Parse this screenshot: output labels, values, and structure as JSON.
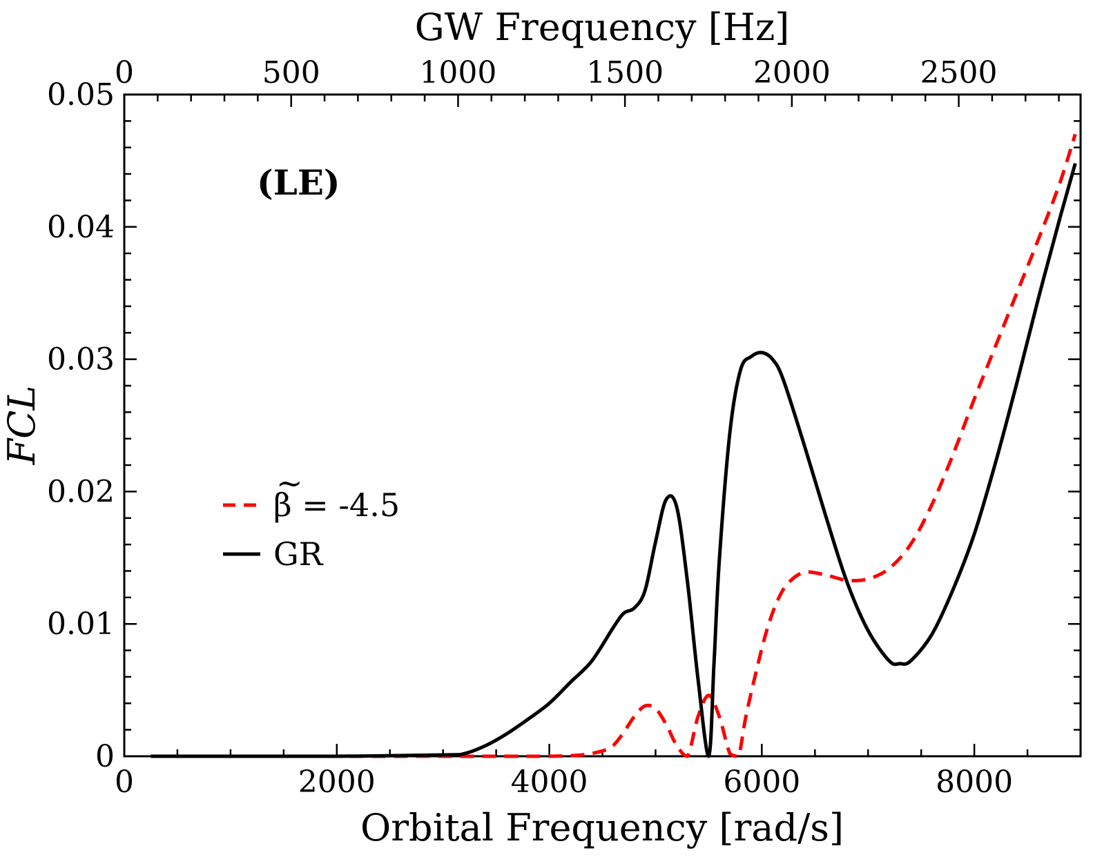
{
  "chart_data": {
    "type": "line",
    "title": "",
    "xlabel": "Orbital Frequency [rad/s]",
    "x2label": "GW Frequency [Hz]",
    "ylabel": "FCL",
    "annotation": "(LE)",
    "xlim": [
      0,
      9000
    ],
    "x2lim": [
      0,
      2865
    ],
    "ylim": [
      0,
      0.05
    ],
    "x_ticks": [
      {
        "value": 0,
        "label": "0"
      },
      {
        "value": 2000,
        "label": "2000"
      },
      {
        "value": 4000,
        "label": "4000"
      },
      {
        "value": 6000,
        "label": "6000"
      },
      {
        "value": 8000,
        "label": "8000"
      }
    ],
    "x2_ticks": [
      {
        "value": 0,
        "label": "0"
      },
      {
        "value": 500,
        "label": "500"
      },
      {
        "value": 1000,
        "label": "1000"
      },
      {
        "value": 1500,
        "label": "1500"
      },
      {
        "value": 2000,
        "label": "2000"
      },
      {
        "value": 2500,
        "label": "2500"
      }
    ],
    "y_ticks": [
      {
        "value": 0,
        "label": "0"
      },
      {
        "value": 0.01,
        "label": "0.01"
      },
      {
        "value": 0.02,
        "label": "0.02"
      },
      {
        "value": 0.03,
        "label": "0.03"
      },
      {
        "value": 0.04,
        "label": "0.04"
      },
      {
        "value": 0.05,
        "label": "0.05"
      }
    ],
    "legend": {
      "placement": "center-left",
      "entries": [
        {
          "series": 0,
          "label_prefix": "β",
          "label_accent": "~",
          "label_suffix": " = -4.5"
        },
        {
          "series": 1,
          "label": "GR"
        }
      ]
    },
    "series": [
      {
        "name": "β̃ = -4.5",
        "color": "#ff0000",
        "style": "dashed",
        "x": [
          250,
          1000,
          2000,
          3000,
          3500,
          4000,
          4300,
          4500,
          4600,
          4700,
          4800,
          4900,
          5000,
          5100,
          5200,
          5300,
          5400,
          5500,
          5600,
          5700,
          5780,
          5850,
          5950,
          6050,
          6150,
          6250,
          6400,
          6600,
          6800,
          7000,
          7200,
          7400,
          7600,
          7800,
          8000,
          8200,
          8400,
          8600,
          8800,
          8950
        ],
        "y": [
          0,
          0,
          0,
          0,
          0,
          0,
          0.0001,
          0.0004,
          0.0008,
          0.0018,
          0.003,
          0.0038,
          0.0036,
          0.0024,
          0.0008,
          0.0,
          0.003,
          0.0046,
          0.003,
          0.0002,
          0.0,
          0.003,
          0.0065,
          0.0096,
          0.0118,
          0.0131,
          0.0139,
          0.0137,
          0.0133,
          0.0134,
          0.0142,
          0.016,
          0.019,
          0.0228,
          0.027,
          0.031,
          0.035,
          0.039,
          0.0432,
          0.047
        ]
      },
      {
        "name": "GR",
        "color": "#000000",
        "style": "solid",
        "x": [
          250,
          1000,
          2000,
          3000,
          3200,
          3400,
          3600,
          3800,
          4000,
          4200,
          4400,
          4600,
          4700,
          4800,
          4900,
          5000,
          5100,
          5200,
          5300,
          5400,
          5500,
          5550,
          5600,
          5700,
          5800,
          5900,
          6000,
          6100,
          6200,
          6400,
          6600,
          6800,
          7000,
          7200,
          7300,
          7400,
          7600,
          7800,
          8000,
          8200,
          8400,
          8600,
          8800,
          8950
        ],
        "y": [
          0,
          0,
          0,
          0.0001,
          0.0002,
          0.0008,
          0.0017,
          0.0028,
          0.004,
          0.0056,
          0.0072,
          0.0097,
          0.0108,
          0.0112,
          0.0125,
          0.0162,
          0.0194,
          0.0188,
          0.0132,
          0.0058,
          0.0,
          0.007,
          0.0148,
          0.0245,
          0.0292,
          0.0302,
          0.0305,
          0.03,
          0.0285,
          0.0235,
          0.0182,
          0.0132,
          0.0095,
          0.0072,
          0.007,
          0.0072,
          0.0092,
          0.0126,
          0.0168,
          0.0222,
          0.0282,
          0.0345,
          0.0405,
          0.0448
        ]
      }
    ]
  }
}
